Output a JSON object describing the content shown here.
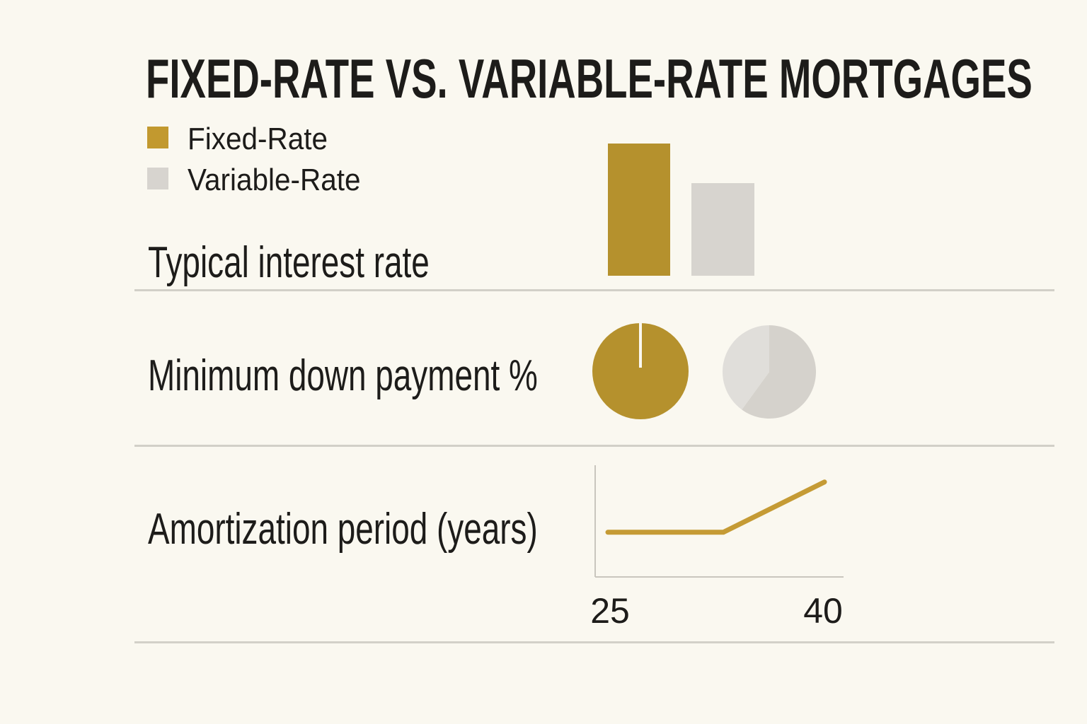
{
  "title": "FIXED-RATE VS. VARIABLE-RATE MORTGAGES",
  "legend": {
    "items": [
      {
        "label": "Fixed-Rate",
        "color": "#C2992F"
      },
      {
        "label": "Variable-Rate",
        "color": "#D7D4CF"
      }
    ]
  },
  "rows": [
    {
      "label": "Typical interest rate"
    },
    {
      "label": "Minimum down payment %"
    },
    {
      "label": "Amortization period (years)"
    }
  ],
  "colors": {
    "background": "#FAF8F0",
    "text": "#1D1C1A",
    "gold_bar": "#B5912D",
    "gold_accent": "#C59B35",
    "bar_gray": "#D7D4CF",
    "pie_gray_dark": "#D5D2CC",
    "pie_gray_light": "#E0DEDA",
    "axis_gray": "#C9C6BE",
    "divider": "#D2D0C8"
  },
  "chart_data": [
    {
      "type": "bar",
      "row_label": "Typical interest rate",
      "categories": [
        "Fixed-Rate",
        "Variable-Rate"
      ],
      "values_relative": [
        1.0,
        0.7
      ],
      "note": "No numeric axis shown; fixed-rate bar drawn taller than variable-rate bar."
    },
    {
      "type": "pie",
      "row_label": "Minimum down payment %",
      "pies": [
        {
          "name": "Fixed-Rate",
          "slices": [
            {
              "fraction": 0.99,
              "shade": "gold"
            },
            {
              "fraction": 0.01,
              "shade": "gap"
            }
          ]
        },
        {
          "name": "Variable-Rate",
          "slices": [
            {
              "fraction": 0.6,
              "shade": "dark"
            },
            {
              "fraction": 0.4,
              "shade": "light"
            }
          ]
        }
      ],
      "note": "Stylized pies; fractions estimated from segment angles. Fixed pie is nearly full with a thin notch at 12 o'clock."
    },
    {
      "type": "line",
      "row_label": "Amortization period (years)",
      "x": [
        25,
        33,
        40
      ],
      "y_relative": [
        0.4,
        0.4,
        0.85
      ],
      "x_ticks": [
        "25",
        "40"
      ],
      "xlim": [
        25,
        40
      ],
      "note": "Flat from 25 to ~33 years, then rising toward 40; no y-axis labels shown."
    }
  ]
}
